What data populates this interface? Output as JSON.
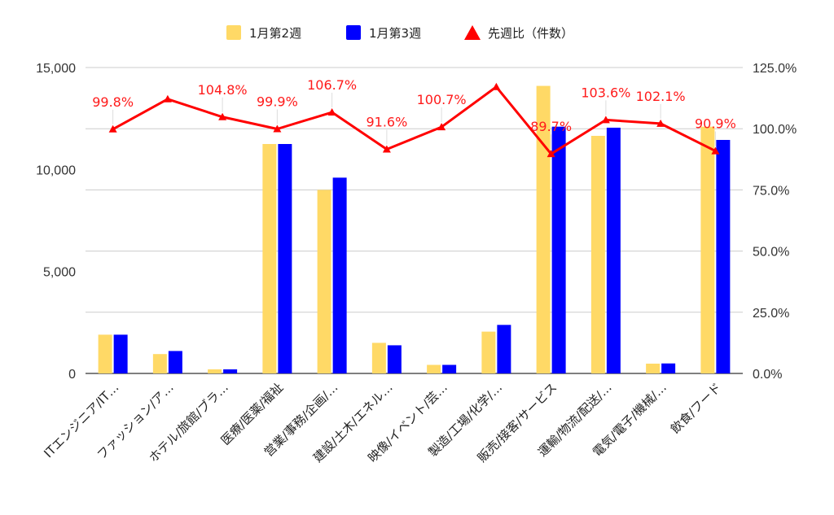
{
  "chart_data": {
    "type": "bar",
    "categories": [
      "ITエンジニア/IT…",
      "ファッション/ア…",
      "ホテル/旅館/ブラ…",
      "医療/医薬/福祉",
      "営業/事務/企画/…",
      "建設/土木/エネル…",
      "映像/イベント/芸…",
      "製造/工場/化学/…",
      "販売/接客/サービス",
      "運輸/物流/配送/…",
      "電気/電子/機械/…",
      "飲食/フード"
    ],
    "series": [
      {
        "name": "1月第2週",
        "color": "#ffd966",
        "axis": "left",
        "type": "bar",
        "values": [
          1900,
          950,
          200,
          11250,
          9000,
          1500,
          420,
          2050,
          14100,
          11650,
          480,
          12100
        ]
      },
      {
        "name": "1月第3週",
        "color": "#0000ff",
        "axis": "left",
        "type": "bar",
        "values": [
          1900,
          1100,
          200,
          11250,
          9600,
          1380,
          420,
          2380,
          12100,
          12050,
          490,
          11450
        ]
      },
      {
        "name": "先週比（件数）",
        "color": "#ff0000",
        "axis": "right",
        "type": "line",
        "values": [
          99.8,
          112.1,
          104.8,
          99.9,
          106.7,
          91.6,
          100.7,
          117.1,
          89.7,
          103.6,
          102.1,
          90.9
        ],
        "labels": [
          "99.8%",
          "",
          "104.8%",
          "99.9%",
          "106.7%",
          "91.6%",
          "100.7%",
          "",
          "89.7%",
          "103.6%",
          "102.1%",
          "90.9%"
        ]
      }
    ],
    "y_left": {
      "ylim": [
        0,
        15000
      ],
      "ticks": [
        "0",
        "5,000",
        "10,000",
        "15,000"
      ],
      "tick_values": [
        0,
        5000,
        10000,
        15000
      ]
    },
    "y_right": {
      "ylim": [
        0,
        125
      ],
      "ticks": [
        "0.0%",
        "25.0%",
        "50.0%",
        "75.0%",
        "100.0%",
        "125.0%"
      ],
      "tick_values": [
        0,
        25,
        50,
        75,
        100,
        125
      ]
    },
    "grid": true,
    "legend_position": "top-center"
  }
}
